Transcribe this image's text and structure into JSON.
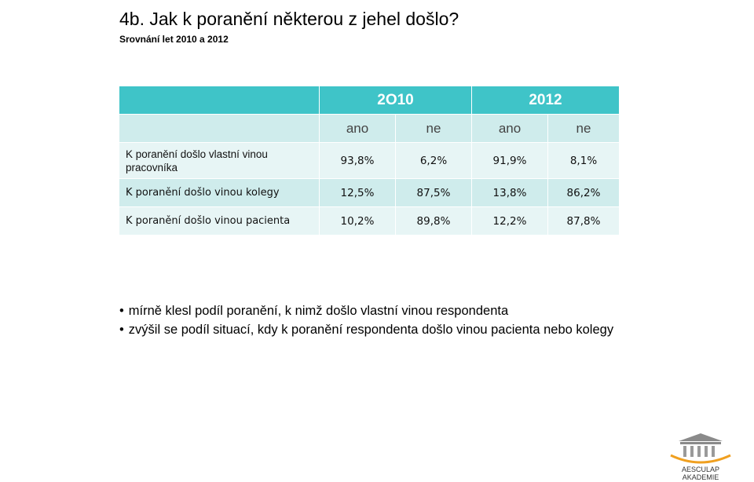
{
  "title": "4b. Jak k poranění některou z jehel došlo?",
  "subtitle": "Srovnání let  2010 a 2012",
  "table": {
    "years": [
      "2O10",
      "2012"
    ],
    "subheaders": [
      "ano",
      "ne",
      "ano",
      "ne"
    ],
    "rows": [
      {
        "label": "K poranění došlo vlastní vinou pracovníka",
        "values": [
          "93,8%",
          "6,2%",
          "91,9%",
          "8,1%"
        ]
      },
      {
        "label": "K poranění došlo vinou kolegy",
        "values": [
          "12,5%",
          "87,5%",
          "13,8%",
          "86,2%"
        ]
      },
      {
        "label": "K poranění došlo vinou pacienta",
        "values": [
          "10,2%",
          "89,8%",
          "12,2%",
          "87,8%"
        ]
      }
    ]
  },
  "notes": [
    "mírně klesl podíl poranění, k nimž došlo vlastní vinou respondenta",
    "zvýšil se podíl situací, kdy k poranění respondenta došlo vinou pacienta nebo kolegy"
  ],
  "logo": {
    "line1": "AESCULAP",
    "line2": "AKADEMIE",
    "accent_color": "#f0a020"
  },
  "colors": {
    "header": "#3fc4c8",
    "row_dark": "#cfecec",
    "row_light": "#e7f5f5"
  }
}
